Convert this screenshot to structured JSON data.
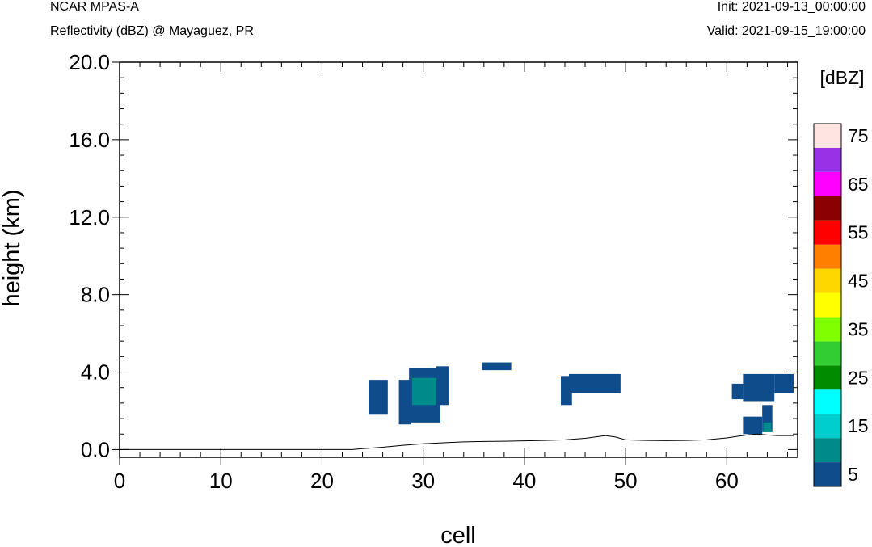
{
  "header": {
    "model": "NCAR MPAS-A",
    "subtitle": "Reflectivity (dBZ) @ Mayaguez, PR",
    "init": "Init: 2021-09-13_00:00:00",
    "valid": "Valid: 2021-09-15_19:00:00"
  },
  "chart_data": {
    "type": "heatmap",
    "title": "Reflectivity (dBZ) @ Mayaguez, PR",
    "xlabel": "cell",
    "ylabel": "height (km)",
    "xlim": [
      0,
      67
    ],
    "ylim": [
      -0.4,
      20.0
    ],
    "xticks": [
      "0",
      "10",
      "20",
      "30",
      "40",
      "50",
      "60"
    ],
    "yticks": [
      "0.0",
      "4.0",
      "8.0",
      "12.0",
      "16.0",
      "20.0"
    ],
    "colorbar": {
      "label": "[dBZ]",
      "tick_labels": [
        "5",
        "15",
        "25",
        "35",
        "45",
        "55",
        "65",
        "75"
      ],
      "colors": [
        "#0e4c8b",
        "#008b8b",
        "#00cdcd",
        "#00ffff",
        "#008b00",
        "#32cd32",
        "#7fff00",
        "#ffff00",
        "#ffd700",
        "#ff7f00",
        "#ff0000",
        "#8b0000",
        "#ff00ff",
        "#9932e6",
        "#ffe4e1"
      ]
    },
    "regions": [
      {
        "x0": 24.6,
        "x1": 26.5,
        "y0": 1.8,
        "y1": 3.6,
        "dbz": 5
      },
      {
        "x0": 27.6,
        "x1": 28.8,
        "y0": 1.3,
        "y1": 3.6,
        "dbz": 5
      },
      {
        "x0": 28.6,
        "x1": 31.7,
        "y0": 1.4,
        "y1": 4.2,
        "dbz": 5
      },
      {
        "x0": 31.3,
        "x1": 32.5,
        "y0": 2.3,
        "y1": 4.3,
        "dbz": 5
      },
      {
        "x0": 28.9,
        "x1": 31.3,
        "y0": 2.3,
        "y1": 3.7,
        "dbz": 10
      },
      {
        "x0": 35.8,
        "x1": 38.7,
        "y0": 4.1,
        "y1": 4.5,
        "dbz": 5
      },
      {
        "x0": 43.6,
        "x1": 44.7,
        "y0": 2.3,
        "y1": 3.8,
        "dbz": 5
      },
      {
        "x0": 44.4,
        "x1": 49.5,
        "y0": 2.9,
        "y1": 3.9,
        "dbz": 5
      },
      {
        "x0": 60.5,
        "x1": 61.6,
        "y0": 2.6,
        "y1": 3.4,
        "dbz": 5
      },
      {
        "x0": 61.6,
        "x1": 64.7,
        "y0": 2.5,
        "y1": 3.9,
        "dbz": 5
      },
      {
        "x0": 64.7,
        "x1": 66.6,
        "y0": 2.9,
        "y1": 3.9,
        "dbz": 5
      },
      {
        "x0": 61.6,
        "x1": 63.5,
        "y0": 0.8,
        "y1": 1.7,
        "dbz": 5
      },
      {
        "x0": 63.5,
        "x1": 64.5,
        "y0": 0.9,
        "y1": 2.3,
        "dbz": 5
      },
      {
        "x0": 63.6,
        "x1": 64.4,
        "y0": 0.9,
        "y1": 1.4,
        "dbz": 10
      }
    ],
    "terrain": {
      "x": [
        0,
        23,
        24,
        26,
        28,
        30,
        32,
        34,
        36,
        38,
        40,
        42,
        44,
        46,
        48,
        49,
        50,
        52,
        54,
        56,
        58,
        60,
        61,
        62,
        63,
        64,
        65,
        66,
        66.6
      ],
      "y": [
        0.0,
        0.0,
        0.05,
        0.12,
        0.22,
        0.3,
        0.35,
        0.4,
        0.42,
        0.43,
        0.45,
        0.47,
        0.5,
        0.58,
        0.72,
        0.65,
        0.5,
        0.47,
        0.46,
        0.47,
        0.5,
        0.6,
        0.68,
        0.75,
        0.8,
        0.75,
        0.72,
        0.72,
        0.72
      ]
    }
  }
}
